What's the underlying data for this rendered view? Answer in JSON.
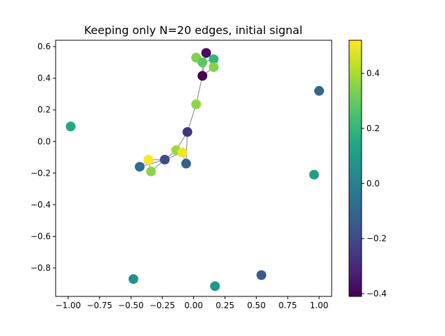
{
  "chart_data": {
    "type": "scatter",
    "title": "Keeping only N=20 edges, initial signal",
    "xlabel": "",
    "ylabel": "",
    "xlim": [
      -1.1,
      1.1
    ],
    "ylim": [
      -0.98,
      0.64
    ],
    "x_ticks": [
      -1.0,
      -0.75,
      -0.5,
      -0.25,
      0.0,
      0.25,
      0.5,
      0.75,
      1.0
    ],
    "x_tick_labels": [
      "−1.00",
      "−0.75",
      "−0.50",
      "−0.25",
      "0.00",
      "0.25",
      "0.50",
      "0.75",
      "1.00"
    ],
    "y_ticks": [
      -0.8,
      -0.6,
      -0.4,
      -0.2,
      0.0,
      0.2,
      0.4,
      0.6
    ],
    "y_tick_labels": [
      "−0.8",
      "−0.6",
      "−0.4",
      "−0.2",
      "0.0",
      "0.2",
      "0.4",
      "0.6"
    ],
    "colormap": "viridis",
    "color_range": [
      -0.41,
      0.52
    ],
    "colorbar_ticks": [
      -0.4,
      -0.2,
      0.0,
      0.2,
      0.4
    ],
    "colorbar_tick_labels": [
      "−0.4",
      "−0.2",
      "0.0",
      "0.2",
      "0.4"
    ],
    "grid": false,
    "edge_color": "#808080",
    "nodes": [
      {
        "x": 0.1,
        "y": 0.56,
        "value": -0.38
      },
      {
        "x": 0.02,
        "y": 0.53,
        "value": 0.34
      },
      {
        "x": 0.16,
        "y": 0.52,
        "value": 0.2
      },
      {
        "x": 0.07,
        "y": 0.5,
        "value": 0.28
      },
      {
        "x": 0.16,
        "y": 0.47,
        "value": 0.35
      },
      {
        "x": 0.07,
        "y": 0.415,
        "value": -0.41
      },
      {
        "x": 1.0,
        "y": 0.32,
        "value": -0.1
      },
      {
        "x": 0.02,
        "y": 0.235,
        "value": 0.36
      },
      {
        "x": -0.98,
        "y": 0.095,
        "value": 0.15
      },
      {
        "x": -0.05,
        "y": 0.06,
        "value": -0.27
      },
      {
        "x": -0.14,
        "y": -0.055,
        "value": 0.38
      },
      {
        "x": -0.09,
        "y": -0.07,
        "value": 0.5
      },
      {
        "x": -0.36,
        "y": -0.115,
        "value": 0.52
      },
      {
        "x": -0.23,
        "y": -0.115,
        "value": -0.2
      },
      {
        "x": -0.06,
        "y": -0.14,
        "value": -0.12
      },
      {
        "x": -0.43,
        "y": -0.16,
        "value": -0.08
      },
      {
        "x": -0.34,
        "y": -0.19,
        "value": 0.36
      },
      {
        "x": 0.96,
        "y": -0.21,
        "value": 0.1
      },
      {
        "x": 0.54,
        "y": -0.845,
        "value": -0.14
      },
      {
        "x": -0.48,
        "y": -0.87,
        "value": 0.06
      },
      {
        "x": 0.17,
        "y": -0.915,
        "value": 0.08
      }
    ],
    "edges": [
      [
        0,
        5
      ],
      [
        1,
        3
      ],
      [
        2,
        3
      ],
      [
        3,
        5
      ],
      [
        4,
        5
      ],
      [
        2,
        4
      ],
      [
        5,
        7
      ],
      [
        7,
        9
      ],
      [
        9,
        10
      ],
      [
        10,
        11
      ],
      [
        10,
        13
      ],
      [
        12,
        13
      ],
      [
        11,
        14
      ],
      [
        13,
        15
      ],
      [
        12,
        16
      ],
      [
        13,
        16
      ],
      [
        12,
        15
      ],
      [
        9,
        14
      ],
      [
        0,
        3
      ],
      [
        11,
        13
      ]
    ]
  }
}
